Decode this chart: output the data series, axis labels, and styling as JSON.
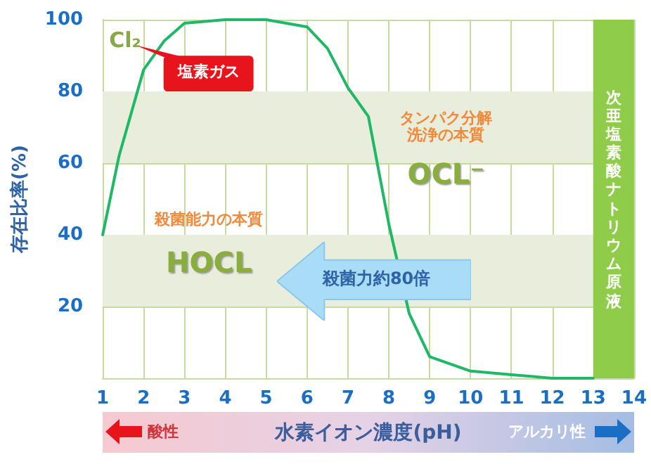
{
  "chart_data": {
    "type": "line",
    "x": [
      1,
      1.4,
      2,
      2.5,
      3,
      4,
      5,
      6,
      6.5,
      7,
      7.5,
      8,
      8.5,
      9,
      10,
      11,
      12,
      13
    ],
    "series": [
      {
        "color": "#1fb866",
        "values": [
          40,
          62,
          86,
          94,
          99,
          100,
          100,
          98,
          92,
          81,
          73,
          43,
          18,
          6,
          2,
          1,
          0,
          0
        ]
      }
    ],
    "xlabel": "水素イオン濃度(pH)",
    "ylabel": "存在比率(%)",
    "xlim": [
      1,
      14
    ],
    "xticks": [
      1,
      2,
      3,
      4,
      5,
      6,
      7,
      8,
      9,
      10,
      11,
      12,
      13,
      14
    ],
    "ylim": [
      0,
      100
    ],
    "yticks": [
      20,
      40,
      60,
      80,
      100
    ],
    "grid": true,
    "marker": "none",
    "line_style": "solid",
    "bands": [
      {
        "axis": "y",
        "from": 60,
        "to": 80,
        "color": "#e8eedb"
      },
      {
        "axis": "y",
        "from": 20,
        "to": 40,
        "color": "#e8eedb"
      },
      {
        "axis": "x",
        "from": 13,
        "to": 14,
        "color": "#8fcc4a",
        "label": "次亜塩素酸ナトリウム原液"
      }
    ],
    "annotations": [
      "Cl₂",
      "塩素ガス",
      "殺菌能力の本質",
      "HOCL",
      "タンパク分解洗浄の本質",
      "OCL⁻",
      "殺菌力約80倍",
      "酸性",
      "アルカリ性"
    ]
  }
}
